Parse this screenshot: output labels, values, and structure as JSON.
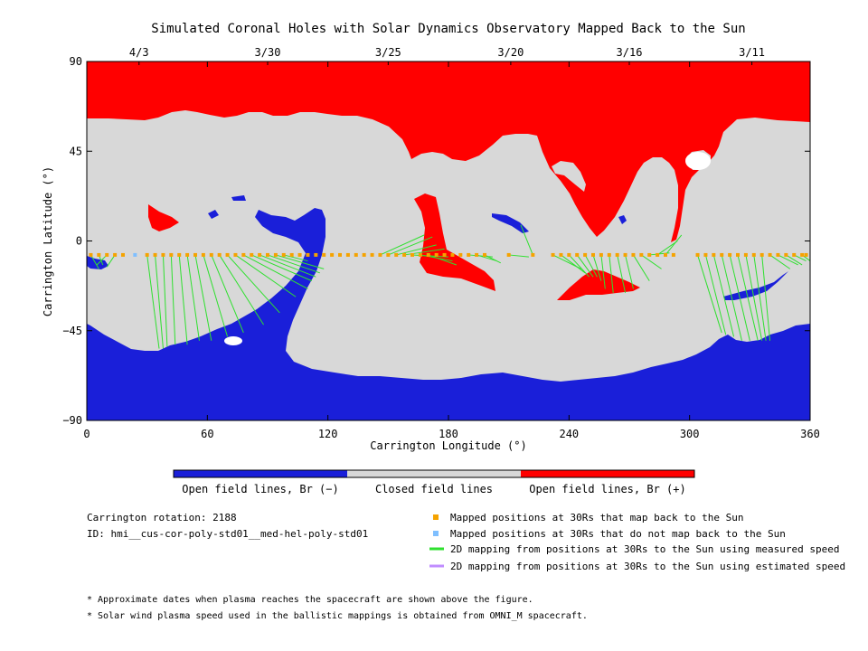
{
  "chart_data": {
    "type": "map",
    "title": "Simulated Coronal Holes with Solar Dynamics Observatory Mapped Back to the Sun",
    "xlabel": "Carrington Longitude (°)",
    "ylabel": "Carrington Latitude (°)",
    "xlim": [
      0,
      360
    ],
    "ylim": [
      -90,
      90
    ],
    "x_ticks": [
      "0",
      "60",
      "120",
      "180",
      "240",
      "300",
      "360"
    ],
    "y_ticks": [
      "90",
      "45",
      "0",
      "−45",
      "−90"
    ],
    "top_axis_dates": [
      "4/3",
      "3/30",
      "3/25",
      "3/20",
      "3/16",
      "3/11"
    ],
    "region_legend": [
      "Open field lines, Br (−)",
      "Closed field lines",
      "Open field lines, Br (+)"
    ],
    "colors": {
      "open_negative": "#1a1fd9",
      "closed": "#d8d8d8",
      "open_positive": "#ff0000",
      "mapped_positions": "#f5a300",
      "unmapped_positions": "#7fbfff",
      "measured_speed_lines": "#2fe02f",
      "estimated_speed_lines": "#c08cff"
    },
    "mapped_positions_lat": -7,
    "mapped_longitudes": [
      2,
      6,
      10,
      14,
      18,
      30,
      34,
      38,
      42,
      46,
      50,
      54,
      58,
      62,
      66,
      70,
      74,
      78,
      82,
      86,
      90,
      94,
      98,
      102,
      106,
      110,
      114,
      118,
      122,
      126,
      130,
      134,
      138,
      142,
      146,
      150,
      154,
      158,
      162,
      166,
      170,
      174,
      178,
      182,
      186,
      190,
      194,
      198,
      210,
      222,
      232,
      236,
      240,
      244,
      248,
      252,
      256,
      260,
      264,
      268,
      272,
      276,
      280,
      284,
      288,
      292,
      304,
      308,
      312,
      316,
      320,
      324,
      328,
      332,
      336,
      340,
      344,
      348,
      352,
      356,
      358
    ],
    "unmapped_longitudes": [
      24
    ],
    "field_line_links": [
      [
        2,
        -7,
        6,
        -14
      ],
      [
        6,
        -7,
        8,
        -12
      ],
      [
        10,
        -7,
        5,
        -12
      ],
      [
        14,
        -7,
        10,
        -13
      ],
      [
        30,
        -7,
        36,
        -54
      ],
      [
        34,
        -7,
        38,
        -54
      ],
      [
        38,
        -7,
        40,
        -53
      ],
      [
        42,
        -7,
        44,
        -52
      ],
      [
        46,
        -7,
        50,
        -52
      ],
      [
        50,
        -7,
        56,
        -50
      ],
      [
        54,
        -7,
        62,
        -50
      ],
      [
        58,
        -7,
        70,
        -48
      ],
      [
        62,
        -7,
        78,
        -46
      ],
      [
        66,
        -7,
        88,
        -42
      ],
      [
        70,
        -7,
        96,
        -36
      ],
      [
        74,
        -7,
        104,
        -28
      ],
      [
        78,
        -7,
        110,
        -24
      ],
      [
        82,
        -7,
        112,
        -20
      ],
      [
        86,
        -7,
        114,
        -18
      ],
      [
        90,
        -7,
        116,
        -16
      ],
      [
        94,
        -7,
        118,
        -14
      ],
      [
        98,
        -7,
        110,
        -10
      ],
      [
        146,
        -7,
        168,
        3
      ],
      [
        150,
        -7,
        172,
        2
      ],
      [
        154,
        -7,
        174,
        -2
      ],
      [
        158,
        -7,
        178,
        -4
      ],
      [
        162,
        -7,
        180,
        -8
      ],
      [
        166,
        -7,
        182,
        -10
      ],
      [
        170,
        -7,
        184,
        -12
      ],
      [
        190,
        -7,
        202,
        -8
      ],
      [
        194,
        -7,
        204,
        -10
      ],
      [
        198,
        -7,
        206,
        -11
      ],
      [
        210,
        -7,
        220,
        -8
      ],
      [
        222,
        -7,
        216,
        8
      ],
      [
        232,
        -7,
        246,
        -14
      ],
      [
        236,
        -7,
        248,
        -16
      ],
      [
        240,
        -7,
        250,
        -18
      ],
      [
        244,
        -7,
        252,
        -18
      ],
      [
        248,
        -7,
        254,
        -18
      ],
      [
        252,
        -7,
        256,
        -20
      ],
      [
        256,
        -7,
        258,
        -24
      ],
      [
        260,
        -7,
        262,
        -26
      ],
      [
        264,
        -7,
        268,
        -26
      ],
      [
        268,
        -7,
        272,
        -24
      ],
      [
        272,
        -7,
        280,
        -20
      ],
      [
        276,
        -7,
        286,
        -14
      ],
      [
        280,
        -7,
        290,
        -6
      ],
      [
        284,
        -7,
        294,
        0
      ],
      [
        288,
        -7,
        296,
        3
      ],
      [
        304,
        -7,
        316,
        -46
      ],
      [
        308,
        -7,
        318,
        -47
      ],
      [
        312,
        -7,
        322,
        -48
      ],
      [
        316,
        -7,
        326,
        -50
      ],
      [
        320,
        -7,
        330,
        -50
      ],
      [
        324,
        -7,
        334,
        -50
      ],
      [
        328,
        -7,
        336,
        -50
      ],
      [
        332,
        -7,
        338,
        -50
      ],
      [
        336,
        -7,
        340,
        -50
      ],
      [
        340,
        -7,
        350,
        -14
      ],
      [
        344,
        -7,
        354,
        -12
      ],
      [
        348,
        -7,
        356,
        -12
      ],
      [
        352,
        -7,
        358,
        -10
      ],
      [
        356,
        -7,
        360,
        -10
      ]
    ]
  },
  "info": {
    "rotation": "Carrington rotation: 2188",
    "id": "ID: hmi__cus-cor-poly-std01__med-hel-poly-std01"
  },
  "legend": {
    "mapped": "Mapped positions at 30Rs that map back to the Sun",
    "unmapped": "Mapped positions at 30Rs that do not map back to the Sun",
    "measured": "2D mapping from positions at 30Rs to the Sun using measured speed",
    "estimated": "2D mapping from positions at 30Rs to the Sun using estimated speed"
  },
  "notes": {
    "note1": "* Approximate dates when plasma reaches the spacecraft are shown above the figure.",
    "note2": "* Solar wind plasma speed used in the ballistic mappings is obtained from OMNI_M spacecraft."
  }
}
